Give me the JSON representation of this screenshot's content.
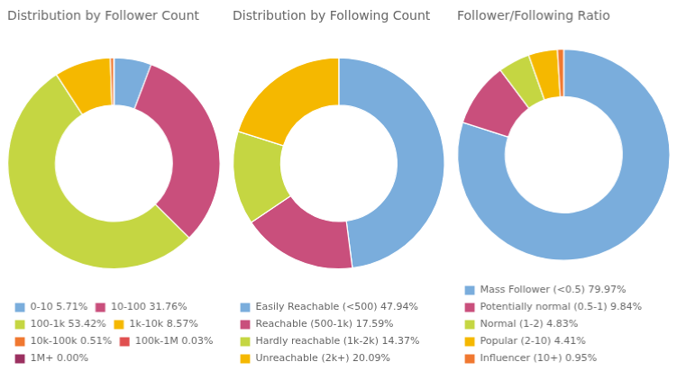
{
  "chart_data": [
    {
      "type": "doughnut",
      "title": "Distribution by Follower Count",
      "categories": [
        "0-10 5.71%",
        "10-100 31.76%",
        "100-1k 53.42%",
        "1k-10k 8.57%",
        "10k-100k 0.51%",
        "100k-1M 0.03%",
        "1M+ 0.00%"
      ],
      "values": [
        5.71,
        31.76,
        53.42,
        8.57,
        0.51,
        0.03,
        0.0
      ],
      "colors": [
        "#7aaddc",
        "#c94f7c",
        "#c5d642",
        "#f5b800",
        "#f07830",
        "#e05050",
        "#9b3060"
      ],
      "legend": "bottom"
    },
    {
      "type": "doughnut",
      "title": "Distribution by Following Count",
      "categories": [
        "Easily Reachable (<500) 47.94%",
        "Reachable (500-1k) 17.59%",
        "Hardly reachable (1k-2k) 14.37%",
        "Unreachable (2k+) 20.09%"
      ],
      "values": [
        47.94,
        17.59,
        14.37,
        20.09
      ],
      "colors": [
        "#7aaddc",
        "#c94f7c",
        "#c5d642",
        "#f5b800"
      ],
      "legend": "bottom"
    },
    {
      "type": "doughnut",
      "title": "Follower/Following Ratio",
      "categories": [
        "Mass Follower (<0.5) 79.97%",
        "Potentially normal (0.5-1) 9.84%",
        "Normal (1-2) 4.83%",
        "Popular (2-10) 4.41%",
        "Influencer (10+) 0.95%"
      ],
      "values": [
        79.97,
        9.84,
        4.83,
        4.41,
        0.95
      ],
      "colors": [
        "#7aaddc",
        "#c94f7c",
        "#c5d642",
        "#f5b800",
        "#f07830"
      ],
      "legend": "bottom"
    }
  ]
}
